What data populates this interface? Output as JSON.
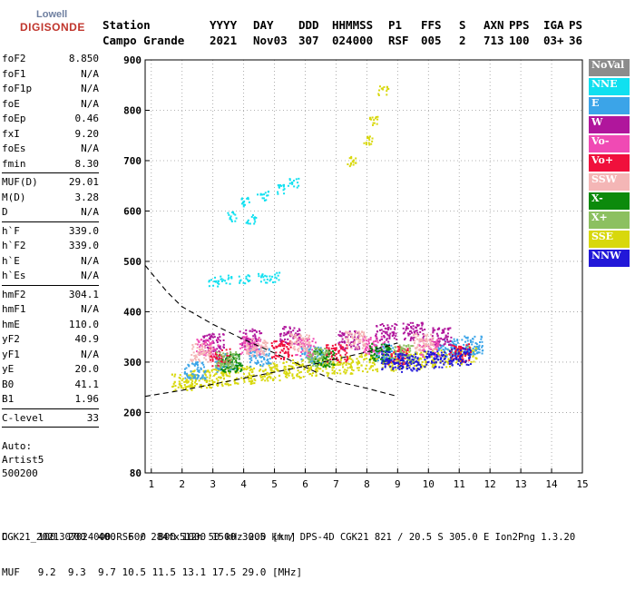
{
  "logo": {
    "line1": "Lowell",
    "line2": "DIGISONDE"
  },
  "header": {
    "cols": [
      {
        "label": "Station",
        "value": "Campo Grande"
      },
      {
        "label": "YYYY",
        "value": "2021"
      },
      {
        "label": "DAY",
        "value": "Nov03"
      },
      {
        "label": "DDD",
        "value": "307"
      },
      {
        "label": "HHMMSS",
        "value": "024000"
      },
      {
        "label": "P1",
        "value": "RSF"
      },
      {
        "label": "FFS",
        "value": "005"
      },
      {
        "label": "S",
        "value": "2"
      },
      {
        "label": "AXN",
        "value": "713"
      },
      {
        "label": "PPS",
        "value": "100"
      },
      {
        "label": "IGA",
        "value": "03+"
      },
      {
        "label": "PS",
        "value": "36"
      }
    ]
  },
  "params": {
    "group1": [
      {
        "k": "foF2",
        "v": "8.850"
      },
      {
        "k": "foF1",
        "v": "N/A"
      },
      {
        "k": "foF1p",
        "v": "N/A"
      },
      {
        "k": "foE",
        "v": "N/A"
      },
      {
        "k": "foEp",
        "v": "0.46"
      },
      {
        "k": "fxI",
        "v": "9.20"
      },
      {
        "k": "foEs",
        "v": "N/A"
      },
      {
        "k": "fmin",
        "v": "8.30"
      }
    ],
    "group2": [
      {
        "k": "MUF(D)",
        "v": "29.01"
      },
      {
        "k": "M(D)",
        "v": "3.28"
      },
      {
        "k": "D",
        "v": "N/A"
      }
    ],
    "group3": [
      {
        "k": "h`F",
        "v": "339.0"
      },
      {
        "k": "h`F2",
        "v": "339.0"
      },
      {
        "k": "h`E",
        "v": "N/A"
      },
      {
        "k": "h`Es",
        "v": "N/A"
      }
    ],
    "group4": [
      {
        "k": "hmF2",
        "v": "304.1"
      },
      {
        "k": "hmF1",
        "v": "N/A"
      },
      {
        "k": "hmE",
        "v": "110.0"
      },
      {
        "k": "yF2",
        "v": "40.9"
      },
      {
        "k": "yF1",
        "v": "N/A"
      },
      {
        "k": "yE",
        "v": "20.0"
      },
      {
        "k": "B0",
        "v": "41.1"
      },
      {
        "k": "B1",
        "v": "1.96"
      }
    ],
    "group5": [
      {
        "k": "C-level",
        "v": "33"
      }
    ]
  },
  "auto": {
    "line1": "Auto:",
    "line2": "Artist5",
    "line3": "500200"
  },
  "footer": {
    "d_row": "D     100  200  400  600  800 1000 1500 3000 [km]",
    "muf_row": "MUF   9.2  9.3  9.7 10.5 11.5 13.1 17.5 29.0 [MHz]",
    "info": "CGK21_2021307024000.RSF / 284fx512h 50 kHz 2.5 km / DPS-4D CGK21 821 / 20.5 S 305.0 E Ion2Png 1.3.20"
  },
  "legend": [
    {
      "label": "NoVal",
      "color": "#8c8c8c"
    },
    {
      "label": "NNE",
      "color": "#10e0f0"
    },
    {
      "label": "E",
      "color": "#3ba4e8"
    },
    {
      "label": "W",
      "color": "#b0169c"
    },
    {
      "label": "Vo-",
      "color": "#f04ab4"
    },
    {
      "label": "Vo+",
      "color": "#f0103c"
    },
    {
      "label": "SSW",
      "color": "#f4b6b6"
    },
    {
      "label": "X-",
      "color": "#0c8a0c"
    },
    {
      "label": "X+",
      "color": "#8cc060"
    },
    {
      "label": "SSE",
      "color": "#d8d80c"
    },
    {
      "label": "NNW",
      "color": "#2218d8"
    }
  ],
  "chart_data": {
    "type": "scatter",
    "xlim": [
      0.8,
      15
    ],
    "ylim": [
      80,
      900
    ],
    "x_ticks": [
      1,
      2,
      3,
      4,
      5,
      6,
      7,
      8,
      9,
      10,
      11,
      12,
      13,
      14,
      15
    ],
    "y_ticks": [
      80,
      200,
      300,
      400,
      500,
      600,
      700,
      800,
      900
    ],
    "grid": "dotted",
    "series": [
      {
        "name": "SSE",
        "color": "#d8d80c",
        "points": [
          [
            2.0,
            262
          ],
          [
            2.6,
            268
          ],
          [
            3.2,
            272
          ],
          [
            4.0,
            276
          ],
          [
            4.8,
            282
          ],
          [
            5.6,
            288
          ],
          [
            6.4,
            292
          ],
          [
            7.2,
            296
          ],
          [
            8.0,
            300
          ],
          [
            8.8,
            302
          ],
          [
            9.6,
            305
          ],
          [
            10.4,
            310
          ],
          [
            11.2,
            315
          ],
          [
            7.5,
            700
          ],
          [
            8.0,
            740
          ],
          [
            8.2,
            780
          ],
          [
            8.5,
            840
          ]
        ]
      },
      {
        "name": "NNE",
        "color": "#10e0f0",
        "points": [
          [
            3.0,
            462
          ],
          [
            3.4,
            464
          ],
          [
            4.0,
            466
          ],
          [
            4.6,
            468
          ],
          [
            5.0,
            470
          ],
          [
            4.0,
            620
          ],
          [
            4.6,
            632
          ],
          [
            5.2,
            645
          ],
          [
            5.6,
            658
          ],
          [
            3.6,
            590
          ],
          [
            4.2,
            585
          ]
        ]
      },
      {
        "name": "E",
        "color": "#3ba4e8",
        "points": [
          [
            2.4,
            285
          ],
          [
            3.4,
            300
          ],
          [
            4.5,
            310
          ],
          [
            6.2,
            315
          ],
          [
            8.6,
            320
          ],
          [
            10.6,
            330
          ],
          [
            11.4,
            335
          ]
        ]
      },
      {
        "name": "W",
        "color": "#b0169c",
        "points": [
          [
            3.0,
            340
          ],
          [
            4.2,
            350
          ],
          [
            5.5,
            355
          ],
          [
            7.4,
            345
          ],
          [
            8.6,
            360
          ],
          [
            9.5,
            362
          ],
          [
            10.4,
            352
          ]
        ]
      },
      {
        "name": "Vo-",
        "color": "#f04ab4",
        "points": [
          [
            2.8,
            330
          ],
          [
            4.2,
            335
          ],
          [
            6.0,
            330
          ],
          [
            8.2,
            335
          ],
          [
            10.0,
            330
          ]
        ]
      },
      {
        "name": "Vo+",
        "color": "#f0103c",
        "points": [
          [
            3.2,
            310
          ],
          [
            5.2,
            325
          ],
          [
            7.0,
            320
          ],
          [
            9.0,
            315
          ],
          [
            11.0,
            320
          ]
        ]
      },
      {
        "name": "SSW",
        "color": "#f4b6b6",
        "points": [
          [
            2.6,
            320
          ],
          [
            4.4,
            330
          ],
          [
            5.8,
            340
          ],
          [
            7.6,
            345
          ],
          [
            9.8,
            340
          ]
        ]
      },
      {
        "name": "X-",
        "color": "#0c8a0c",
        "points": [
          [
            3.6,
            300
          ],
          [
            6.6,
            310
          ],
          [
            8.4,
            320
          ]
        ]
      },
      {
        "name": "X+",
        "color": "#8cc060",
        "points": [
          [
            3.4,
            305
          ],
          [
            6.4,
            312
          ],
          [
            9.2,
            318
          ]
        ]
      },
      {
        "name": "NNW",
        "color": "#2218d8",
        "points": [
          [
            8.8,
            305
          ],
          [
            9.4,
            300
          ],
          [
            10.2,
            308
          ],
          [
            11.0,
            312
          ]
        ]
      }
    ],
    "profile_curves": [
      {
        "x": [
          0.8,
          2,
          3,
          4,
          5,
          6,
          7,
          8,
          9
        ],
        "y": [
          232,
          244,
          256,
          268,
          280,
          292,
          306,
          320,
          338
        ]
      },
      {
        "x": [
          0.8,
          1.5,
          2,
          3,
          4,
          5,
          6,
          7,
          8,
          9
        ],
        "y": [
          492,
          440,
          410,
          375,
          345,
          318,
          290,
          262,
          248,
          232
        ]
      }
    ]
  }
}
